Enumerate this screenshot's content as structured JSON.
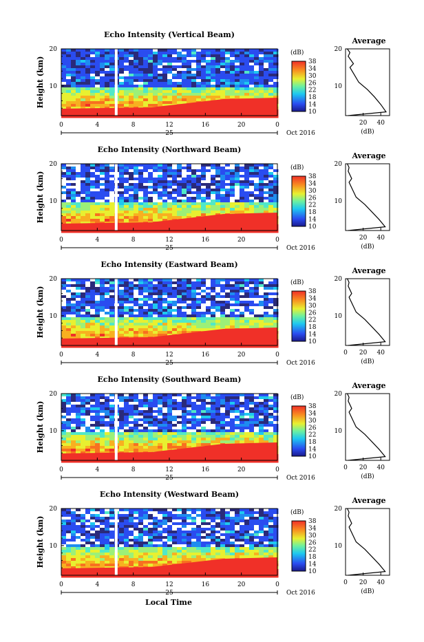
{
  "chart_data": [
    {
      "type": "heatmap",
      "title": "Echo Intensity (Vertical Beam)",
      "avg_title": "Average",
      "ylabel": "Height (km)",
      "yticks": [
        "20",
        "10"
      ],
      "ylim": [
        2,
        20
      ],
      "xticks": [
        "0",
        "4",
        "8",
        "12",
        "16",
        "20",
        "0"
      ],
      "xlim": [
        0,
        24
      ],
      "date_day": "25",
      "date_month": "Oct 2016",
      "colorbar": {
        "unit": "(dB)",
        "ticks": [
          "38",
          "34",
          "30",
          "26",
          "22",
          "18",
          "14",
          "10"
        ],
        "range": [
          10,
          38
        ]
      },
      "gap_hour": 6.1,
      "avg_profile": {
        "xticks": [
          "20",
          "40"
        ],
        "xlabel": "(dB)",
        "xlim": [
          0,
          50
        ],
        "points": [
          [
            3,
            2
          ],
          [
            46,
            3
          ],
          [
            40,
            5
          ],
          [
            33,
            7
          ],
          [
            25,
            9
          ],
          [
            15,
            11
          ],
          [
            10,
            13
          ],
          [
            5,
            15
          ],
          [
            9,
            16
          ],
          [
            3,
            18
          ],
          [
            5,
            19
          ],
          [
            2,
            20
          ]
        ]
      }
    },
    {
      "type": "heatmap",
      "title": "Echo Intensity (Northward Beam)",
      "avg_title": "Average",
      "ylabel": "Height (km)",
      "yticks": [
        "20",
        "10"
      ],
      "ylim": [
        2,
        20
      ],
      "xticks": [
        "0",
        "4",
        "8",
        "12",
        "16",
        "20",
        "0"
      ],
      "xlim": [
        0,
        24
      ],
      "date_day": "25",
      "date_month": "Oct 2016",
      "colorbar": {
        "unit": "(dB)",
        "ticks": [
          "38",
          "34",
          "30",
          "26",
          "22",
          "18",
          "14",
          "10"
        ],
        "range": [
          10,
          38
        ]
      },
      "gap_hour": 6.1,
      "avg_profile": {
        "xticks": [
          "20",
          "40"
        ],
        "xlabel": "(dB)",
        "xlim": [
          0,
          50
        ],
        "points": [
          [
            3,
            2
          ],
          [
            45,
            3
          ],
          [
            38,
            5
          ],
          [
            30,
            7
          ],
          [
            22,
            9
          ],
          [
            12,
            11
          ],
          [
            8,
            13
          ],
          [
            4,
            15
          ],
          [
            7,
            16
          ],
          [
            3,
            18
          ],
          [
            4,
            19
          ],
          [
            2,
            20
          ]
        ]
      }
    },
    {
      "type": "heatmap",
      "title": "Echo Intensity (Eastward Beam)",
      "avg_title": "Average",
      "ylabel": "Height (km)",
      "yticks": [
        "20",
        "10"
      ],
      "ylim": [
        2,
        20
      ],
      "xticks": [
        "0",
        "4",
        "8",
        "12",
        "16",
        "20",
        "0"
      ],
      "xlim": [
        0,
        24
      ],
      "date_day": "25",
      "date_month": "Oct 2016",
      "colorbar": {
        "unit": "(dB)",
        "ticks": [
          "38",
          "34",
          "30",
          "26",
          "22",
          "18",
          "14",
          "10"
        ],
        "range": [
          10,
          38
        ]
      },
      "gap_hour": 6.1,
      "avg_profile": {
        "xticks": [
          "0",
          "20",
          "40"
        ],
        "xlabel": "(dB)",
        "xlim": [
          0,
          50
        ],
        "points": [
          [
            3,
            2
          ],
          [
            45,
            3
          ],
          [
            38,
            5
          ],
          [
            30,
            7
          ],
          [
            22,
            9
          ],
          [
            12,
            11
          ],
          [
            8,
            13
          ],
          [
            4,
            15
          ],
          [
            7,
            16
          ],
          [
            3,
            18
          ],
          [
            4,
            19
          ],
          [
            2,
            20
          ]
        ]
      }
    },
    {
      "type": "heatmap",
      "title": "Echo Intensity (Southward Beam)",
      "avg_title": "Average",
      "ylabel": "Height (km)",
      "yticks": [
        "20",
        "10"
      ],
      "ylim": [
        2,
        20
      ],
      "xticks": [
        "0",
        "4",
        "8",
        "12",
        "16",
        "20",
        "0"
      ],
      "xlim": [
        0,
        24
      ],
      "date_day": "25",
      "date_month": "Oct 2016",
      "colorbar": {
        "unit": "(dB)",
        "ticks": [
          "38",
          "34",
          "30",
          "26",
          "22",
          "18",
          "14",
          "10"
        ],
        "range": [
          10,
          38
        ]
      },
      "gap_hour": 6.1,
      "avg_profile": {
        "xticks": [
          "0",
          "20",
          "40"
        ],
        "xlabel": "(dB)",
        "xlim": [
          0,
          50
        ],
        "points": [
          [
            3,
            2
          ],
          [
            45,
            3
          ],
          [
            38,
            5
          ],
          [
            30,
            7
          ],
          [
            22,
            9
          ],
          [
            12,
            11
          ],
          [
            8,
            13
          ],
          [
            4,
            15
          ],
          [
            7,
            16
          ],
          [
            3,
            18
          ],
          [
            4,
            19
          ],
          [
            2,
            20
          ]
        ]
      }
    },
    {
      "type": "heatmap",
      "title": "Echo Intensity (Westward Beam)",
      "avg_title": "Average",
      "ylabel": "Height (km)",
      "yticks": [
        "20",
        "10"
      ],
      "ylim": [
        2,
        20
      ],
      "xticks": [
        "0",
        "4",
        "8",
        "12",
        "16",
        "20",
        "0"
      ],
      "xlim": [
        0,
        24
      ],
      "date_day": "25",
      "date_month": "Oct 2016",
      "colorbar": {
        "unit": "(dB)",
        "ticks": [
          "38",
          "34",
          "30",
          "26",
          "22",
          "18",
          "14",
          "10"
        ],
        "range": [
          10,
          38
        ]
      },
      "gap_hour": 6.1,
      "avg_profile": {
        "xticks": [
          "0",
          "20",
          "40"
        ],
        "xlabel": "(dB)",
        "xlim": [
          0,
          50
        ],
        "points": [
          [
            3,
            2
          ],
          [
            45,
            3
          ],
          [
            38,
            5
          ],
          [
            30,
            7
          ],
          [
            22,
            9
          ],
          [
            12,
            11
          ],
          [
            8,
            13
          ],
          [
            4,
            15
          ],
          [
            7,
            16
          ],
          [
            3,
            18
          ],
          [
            4,
            19
          ],
          [
            2,
            20
          ]
        ]
      }
    }
  ],
  "footer": {
    "xlabel": "Local Time"
  }
}
